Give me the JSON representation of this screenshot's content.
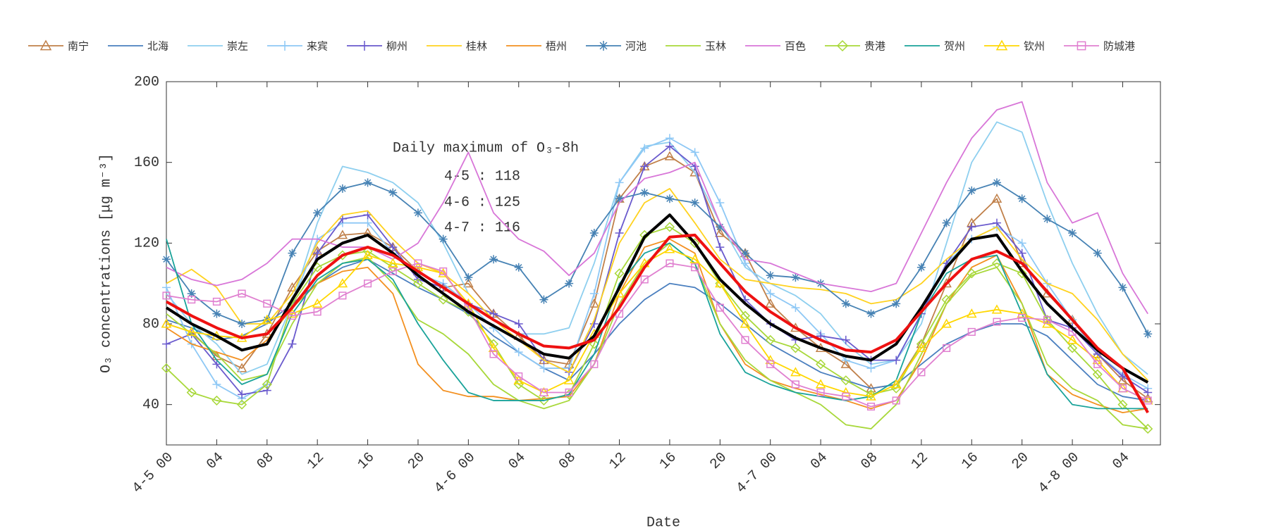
{
  "chart_data": {
    "type": "line",
    "x_label": "Date",
    "y_label": "O₃ concentrations [μg m⁻³]",
    "annotation": {
      "title": "Daily maximum of O₃-8h",
      "lines": [
        "4-5 : 118",
        "4-6 : 125",
        "4-7 : 116"
      ]
    },
    "xlim": [
      0,
      79
    ],
    "ylim": [
      20,
      200
    ],
    "yticks": [
      40,
      80,
      120,
      160,
      200
    ],
    "xticks": [
      {
        "value": 0,
        "label": "4-5 00"
      },
      {
        "value": 4,
        "label": "04"
      },
      {
        "value": 8,
        "label": "08"
      },
      {
        "value": 12,
        "label": "12"
      },
      {
        "value": 16,
        "label": "16"
      },
      {
        "value": 20,
        "label": "20"
      },
      {
        "value": 24,
        "label": "4-6 00"
      },
      {
        "value": 28,
        "label": "04"
      },
      {
        "value": 32,
        "label": "08"
      },
      {
        "value": 36,
        "label": "12"
      },
      {
        "value": 40,
        "label": "16"
      },
      {
        "value": 44,
        "label": "20"
      },
      {
        "value": 48,
        "label": "4-7 00"
      },
      {
        "value": 52,
        "label": "04"
      },
      {
        "value": 56,
        "label": "08"
      },
      {
        "value": 60,
        "label": "12"
      },
      {
        "value": 64,
        "label": "16"
      },
      {
        "value": 68,
        "label": "20"
      },
      {
        "value": 72,
        "label": "4-8 00"
      },
      {
        "value": 76,
        "label": "04"
      }
    ],
    "x": [
      0,
      2,
      4,
      6,
      8,
      10,
      12,
      14,
      16,
      18,
      20,
      22,
      24,
      26,
      28,
      30,
      32,
      34,
      36,
      38,
      40,
      42,
      44,
      46,
      48,
      50,
      52,
      54,
      56,
      58,
      60,
      62,
      64,
      66,
      68,
      70,
      72,
      74,
      76,
      78
    ],
    "series": [
      {
        "name": "南宁",
        "color": "#c0804a",
        "marker": "triangle",
        "values": [
          80,
          76,
          64,
          58,
          75,
          98,
          116,
          124,
          125,
          118,
          106,
          98,
          100,
          85,
          74,
          62,
          60,
          90,
          142,
          158,
          163,
          155,
          125,
          115,
          90,
          78,
          68,
          60,
          48,
          50,
          70,
          100,
          130,
          142,
          110,
          95,
          82,
          65,
          52,
          43
        ]
      },
      {
        "name": "北海",
        "color": "#4a7fbf",
        "marker": "none",
        "values": [
          82,
          78,
          72,
          74,
          80,
          90,
          100,
          108,
          112,
          105,
          98,
          92,
          85,
          74,
          66,
          58,
          52,
          65,
          80,
          92,
          100,
          98,
          90,
          80,
          70,
          63,
          56,
          52,
          48,
          50,
          60,
          70,
          76,
          80,
          80,
          74,
          62,
          50,
          44,
          42
        ]
      },
      {
        "name": "崇左",
        "color": "#8ecfef",
        "marker": "none",
        "values": [
          95,
          80,
          70,
          55,
          60,
          90,
          130,
          158,
          155,
          150,
          140,
          120,
          95,
          82,
          75,
          75,
          78,
          110,
          150,
          168,
          170,
          155,
          130,
          108,
          100,
          94,
          85,
          70,
          60,
          62,
          80,
          120,
          160,
          180,
          175,
          140,
          110,
          85,
          65,
          55
        ]
      },
      {
        "name": "来宾",
        "color": "#8ec8f5",
        "marker": "plus",
        "values": [
          98,
          70,
          50,
          43,
          50,
          90,
          122,
          130,
          130,
          115,
          105,
          100,
          90,
          78,
          66,
          58,
          58,
          95,
          150,
          167,
          172,
          165,
          140,
          110,
          95,
          88,
          75,
          62,
          58,
          62,
          85,
          110,
          122,
          128,
          120,
          100,
          82,
          65,
          55,
          48
        ]
      },
      {
        "name": "柳州",
        "color": "#6a5acd",
        "marker": "plus",
        "values": [
          70,
          75,
          60,
          45,
          47,
          70,
          115,
          132,
          134,
          118,
          102,
          98,
          90,
          85,
          80,
          62,
          56,
          80,
          125,
          158,
          168,
          158,
          118,
          92,
          80,
          72,
          74,
          72,
          62,
          62,
          85,
          110,
          128,
          130,
          115,
          82,
          78,
          65,
          54,
          46
        ]
      },
      {
        "name": "桂林",
        "color": "#ffd21f",
        "marker": "none",
        "values": [
          100,
          107,
          98,
          80,
          80,
          95,
          120,
          134,
          136,
          122,
          110,
          105,
          95,
          82,
          72,
          62,
          56,
          82,
          120,
          140,
          147,
          130,
          112,
          102,
          100,
          98,
          97,
          95,
          90,
          92,
          100,
          112,
          122,
          128,
          112,
          100,
          95,
          82,
          65,
          52
        ]
      },
      {
        "name": "梧州",
        "color": "#f39020",
        "marker": "none",
        "values": [
          78,
          70,
          66,
          62,
          72,
          88,
          100,
          106,
          108,
          95,
          60,
          47,
          44,
          44,
          42,
          43,
          44,
          60,
          95,
          118,
          122,
          115,
          80,
          60,
          52,
          48,
          45,
          42,
          38,
          42,
          62,
          90,
          108,
          114,
          90,
          55,
          45,
          40,
          36,
          38
        ]
      },
      {
        "name": "河池",
        "color": "#4682b4",
        "marker": "asterisk",
        "values": [
          112,
          95,
          85,
          80,
          82,
          115,
          135,
          147,
          150,
          145,
          135,
          122,
          103,
          112,
          108,
          92,
          100,
          125,
          142,
          145,
          142,
          140,
          128,
          115,
          104,
          103,
          100,
          90,
          85,
          90,
          108,
          130,
          146,
          150,
          142,
          132,
          125,
          115,
          98,
          75
        ]
      },
      {
        "name": "玉林",
        "color": "#a8d83a",
        "marker": "none",
        "values": [
          85,
          75,
          65,
          52,
          55,
          80,
          100,
          110,
          113,
          100,
          82,
          75,
          65,
          50,
          42,
          38,
          42,
          60,
          90,
          110,
          120,
          110,
          80,
          62,
          52,
          46,
          40,
          30,
          28,
          40,
          65,
          90,
          104,
          108,
          90,
          60,
          48,
          42,
          30,
          28
        ]
      },
      {
        "name": "百色",
        "color": "#d876d8",
        "marker": "none",
        "values": [
          108,
          102,
          99,
          102,
          110,
          122,
          122,
          118,
          118,
          112,
          120,
          140,
          165,
          135,
          122,
          116,
          104,
          115,
          140,
          152,
          155,
          160,
          130,
          112,
          110,
          105,
          100,
          98,
          96,
          100,
          125,
          150,
          172,
          186,
          190,
          150,
          130,
          135,
          105,
          85
        ]
      },
      {
        "name": "贵港",
        "color": "#a8d83a",
        "marker": "diamond",
        "values": [
          58,
          46,
          42,
          40,
          50,
          90,
          108,
          114,
          116,
          108,
          100,
          92,
          86,
          70,
          50,
          42,
          45,
          70,
          105,
          124,
          128,
          120,
          100,
          84,
          72,
          68,
          60,
          52,
          45,
          48,
          70,
          92,
          105,
          110,
          105,
          82,
          68,
          55,
          40,
          28
        ]
      },
      {
        "name": "贺州",
        "color": "#1aa39a",
        "marker": "none",
        "values": [
          122,
          80,
          62,
          50,
          55,
          85,
          102,
          110,
          112,
          102,
          80,
          62,
          46,
          42,
          42,
          42,
          45,
          65,
          100,
          115,
          120,
          110,
          75,
          56,
          50,
          46,
          44,
          42,
          44,
          52,
          85,
          105,
          112,
          114,
          85,
          55,
          40,
          38,
          38,
          38
        ]
      },
      {
        "name": "钦州",
        "color": "#ffd700",
        "marker": "triangle",
        "values": [
          80,
          76,
          74,
          73,
          82,
          85,
          90,
          100,
          114,
          110,
          108,
          105,
          90,
          68,
          52,
          46,
          52,
          75,
          95,
          110,
          117,
          112,
          100,
          80,
          62,
          56,
          50,
          46,
          44,
          50,
          68,
          80,
          85,
          87,
          85,
          80,
          72,
          62,
          48,
          42
        ]
      },
      {
        "name": "防城港",
        "color": "#e080d0",
        "marker": "square",
        "values": [
          94,
          92,
          91,
          95,
          90,
          84,
          86,
          94,
          100,
          106,
          110,
          106,
          88,
          65,
          54,
          46,
          46,
          60,
          85,
          102,
          110,
          108,
          88,
          72,
          60,
          50,
          46,
          44,
          39,
          42,
          56,
          68,
          76,
          81,
          83,
          82,
          76,
          60,
          48,
          42
        ]
      },
      {
        "color": "#000000",
        "marker": "none",
        "width": 4,
        "values": [
          88,
          80,
          74,
          67,
          70,
          92,
          112,
          120,
          124,
          115,
          104,
          95,
          86,
          79,
          72,
          65,
          63,
          74,
          98,
          123,
          134,
          120,
          102,
          90,
          80,
          73,
          68,
          64,
          62,
          70,
          88,
          108,
          122,
          124,
          106,
          90,
          78,
          67,
          58,
          51
        ]
      },
      {
        "color": "#ee1111",
        "marker": "none",
        "width": 4,
        "values": [
          91,
          84,
          78,
          73,
          75,
          88,
          104,
          114,
          118,
          114,
          106,
          98,
          90,
          82,
          75,
          69,
          68,
          72,
          88,
          108,
          123,
          124,
          110,
          96,
          86,
          78,
          72,
          67,
          66,
          72,
          86,
          100,
          112,
          116,
          110,
          96,
          82,
          68,
          58,
          36
        ]
      }
    ]
  }
}
